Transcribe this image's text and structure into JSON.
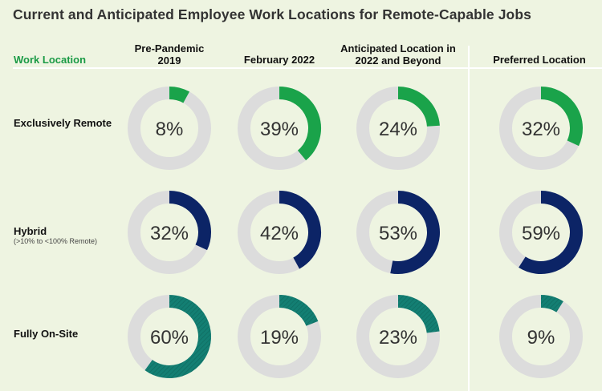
{
  "title": "Current and Anticipated Employee Work Locations for Remote-Capable Jobs",
  "row_header": "Work Location",
  "columns": [
    {
      "line1": "Pre-Pandemic",
      "line2": "2019"
    },
    {
      "line1": "February 2022",
      "line2": ""
    },
    {
      "line1": "Anticipated Location in",
      "line2": "2022 and Beyond"
    },
    {
      "line1": "Preferred Location",
      "line2": ""
    }
  ],
  "rows": [
    {
      "label": "Exclusively Remote",
      "sub": ""
    },
    {
      "label": "Hybrid",
      "sub": "(>10% to <100% Remote)"
    },
    {
      "label": "Fully On-Site",
      "sub": ""
    }
  ],
  "colors": {
    "exclusively_remote": "#1aa34a",
    "hybrid": "#0c2466",
    "fully_on_site": "#137f73",
    "track": "#dcdcdc"
  },
  "chart_data": {
    "type": "donut-grid",
    "categories": [
      "Pre-Pandemic 2019",
      "February 2022",
      "Anticipated Location in 2022 and Beyond",
      "Preferred Location"
    ],
    "series": [
      {
        "name": "Exclusively Remote",
        "values": [
          8,
          39,
          24,
          32
        ]
      },
      {
        "name": "Hybrid",
        "values": [
          32,
          42,
          53,
          59
        ]
      },
      {
        "name": "Fully On-Site",
        "values": [
          60,
          19,
          23,
          9
        ]
      }
    ],
    "unit": "%"
  }
}
